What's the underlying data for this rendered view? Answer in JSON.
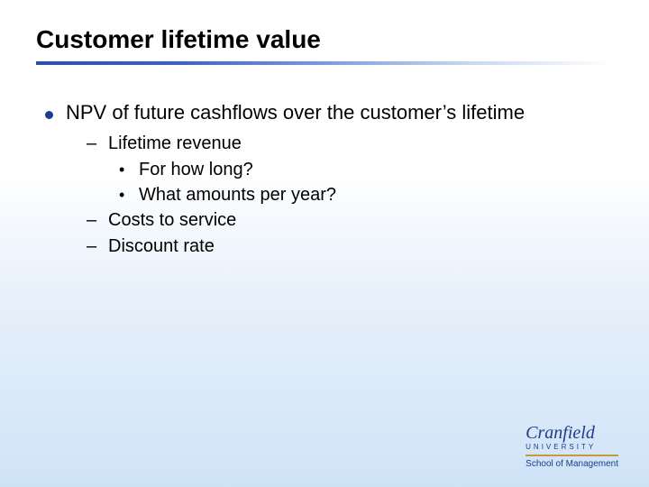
{
  "title": "Customer lifetime value",
  "colors": {
    "bullet": "#1e3b8f",
    "divider_gradient": [
      "#2a4fae",
      "#3d63c2",
      "#7a9bdc",
      "#c7d7ef",
      "#ffffff"
    ],
    "background_gradient": [
      "#ffffff",
      "#e8f1fb",
      "#cfe3f7"
    ],
    "logo_blue": "#1e3b8f",
    "logo_gold": "#c79a3a",
    "text": "#000000"
  },
  "typography": {
    "title_fontsize": 28,
    "l1_fontsize": 22,
    "l2_fontsize": 20,
    "l3_fontsize": 20,
    "font_family": "Arial"
  },
  "content": {
    "l1": "NPV of future cashflows over the customer’s lifetime",
    "sub": [
      {
        "text": "Lifetime revenue",
        "children": [
          "For how long?",
          "What amounts per year?"
        ]
      },
      {
        "text": "Costs to service"
      },
      {
        "text": "Discount rate"
      }
    ]
  },
  "logo": {
    "name": "Cranfield",
    "university": "UNIVERSITY",
    "school": "School of Management"
  }
}
